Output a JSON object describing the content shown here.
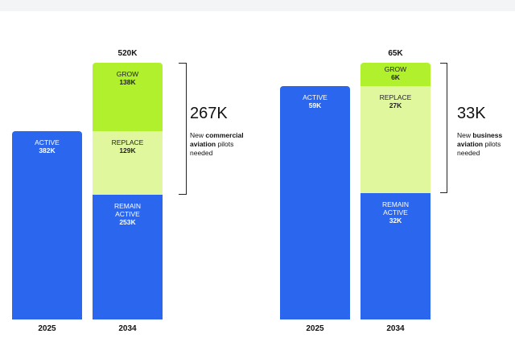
{
  "chart_data": [
    {
      "type": "stacked-bar",
      "bars": [
        {
          "category": "2025",
          "segments": [
            {
              "label": "ACTIVE",
              "value": 382000,
              "value_label": "382K",
              "color": "#2b66ee"
            }
          ]
        },
        {
          "category": "2034",
          "total": 520000,
          "total_label": "520K",
          "segments": [
            {
              "label": "REMAIN ACTIVE",
              "value": 253000,
              "value_label": "253K",
              "color": "#2b66ee"
            },
            {
              "label": "REPLACE",
              "value": 129000,
              "value_label": "129K",
              "color": "#e0f79d"
            },
            {
              "label": "GROW",
              "value": 138000,
              "value_label": "138K",
              "color": "#b0f02c"
            }
          ]
        }
      ],
      "annotation": {
        "value": 267000,
        "value_label": "267K",
        "text": [
          "New ",
          "commercial aviation",
          " pilots needed"
        ]
      }
    },
    {
      "type": "stacked-bar",
      "bars": [
        {
          "category": "2025",
          "segments": [
            {
              "label": "ACTIVE",
              "value": 59000,
              "value_label": "59K",
              "color": "#2b66ee"
            }
          ]
        },
        {
          "category": "2034",
          "total": 65000,
          "total_label": "65K",
          "segments": [
            {
              "label": "REMAIN ACTIVE",
              "value": 32000,
              "value_label": "32K",
              "color": "#2b66ee"
            },
            {
              "label": "REPLACE",
              "value": 27000,
              "value_label": "27K",
              "color": "#e0f79d"
            },
            {
              "label": "GROW",
              "value": 6000,
              "value_label": "6K",
              "color": "#b0f02c"
            }
          ]
        }
      ],
      "annotation": {
        "value": 33000,
        "value_label": "33K",
        "text": [
          "New ",
          "business aviation",
          " pilots needed"
        ]
      }
    }
  ]
}
